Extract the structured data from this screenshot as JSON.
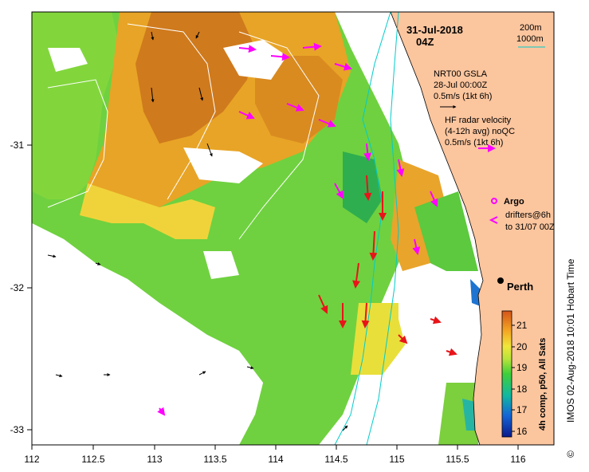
{
  "header": {
    "date": "31-Jul-2018",
    "time": "04Z"
  },
  "contour_legend": {
    "label_1": "200m",
    "label_2": "1000m",
    "line_color": "#00cccc"
  },
  "gsla": {
    "line1": "NRT00 GSLA",
    "line2": "28-Jul 00:00Z",
    "scale": "0.5m/s (1kt 6h)"
  },
  "hf_radar": {
    "line1": "HF radar velocity",
    "line2": "(4-12h avg) noQC",
    "scale": "0.5m/s (1kt 6h)",
    "color": "#ff00ff"
  },
  "argo": {
    "label": "Argo"
  },
  "drifters": {
    "line1": "drifters@6h",
    "line2": "to 31/07 00Z"
  },
  "city": {
    "name": "Perth"
  },
  "colorbar": {
    "label": "4h comp, p50, All Sats",
    "ticks": [
      "21",
      "20",
      "19",
      "18",
      "17",
      "16"
    ],
    "min": 15.5,
    "max": 21.5
  },
  "credit": "IMOS 02-Aug-2018 10:01 Hobart Time",
  "copyright": "©",
  "axes": {
    "x_ticks": [
      "112",
      "112.5",
      "113",
      "113.5",
      "114",
      "114.5",
      "115",
      "115.5",
      "116"
    ],
    "y_ticks": [
      "-31",
      "-32",
      "-33"
    ],
    "xlim": [
      112,
      116.3
    ],
    "ylim": [
      -33.05,
      -30.1
    ]
  },
  "colors": {
    "land": "#fbc59e",
    "coast": "#000000",
    "current_vector": "#e8141a",
    "vector": "#000000"
  }
}
